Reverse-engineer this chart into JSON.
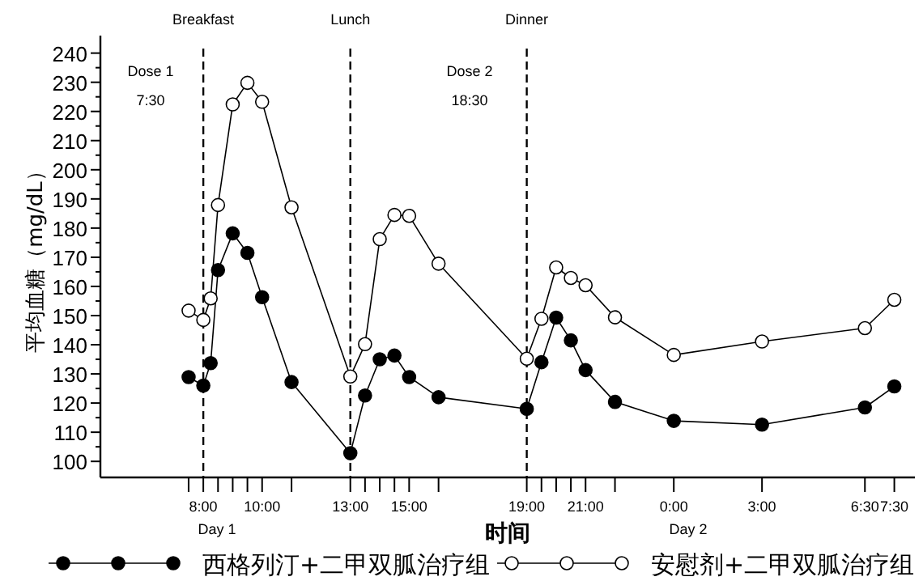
{
  "chart_data": {
    "type": "line",
    "xlabel": "时间",
    "ylabel": "平均血糖（mg/dL）",
    "xlim": [
      "--01-01T04:30",
      "--01-02T08:12"
    ],
    "ylim": [
      94.5,
      246
    ],
    "xticks": [
      {
        "value": "--01-01T07:30",
        "label": null
      },
      {
        "value": "--01-01T08:00",
        "label": "8:00"
      },
      {
        "value": "--01-01T08:30",
        "label": null
      },
      {
        "value": "--01-01T09:00",
        "label": null
      },
      {
        "value": "--01-01T09:30",
        "label": null
      },
      {
        "value": "--01-01T10:00",
        "label": "10:00"
      },
      {
        "value": "--01-01T11:00",
        "label": null
      },
      {
        "value": "--01-01T13:00",
        "label": "13:00"
      },
      {
        "value": "--01-01T13:30",
        "label": null
      },
      {
        "value": "--01-01T14:00",
        "label": null
      },
      {
        "value": "--01-01T14:30",
        "label": null
      },
      {
        "value": "--01-01T15:00",
        "label": "15:00"
      },
      {
        "value": "--01-01T16:00",
        "label": null
      },
      {
        "value": "--01-01T19:00",
        "label": "19:00"
      },
      {
        "value": "--01-01T19:30",
        "label": null
      },
      {
        "value": "--01-01T20:00",
        "label": null
      },
      {
        "value": "--01-01T20:30",
        "label": null
      },
      {
        "value": "--01-01T21:00",
        "label": "21:00"
      },
      {
        "value": "--01-01T22:00",
        "label": null
      },
      {
        "value": "--01-02T00:00",
        "label": "0:00"
      },
      {
        "value": "--01-02T03:00",
        "label": "3:00"
      },
      {
        "value": "--01-02T06:30",
        "label": "6:30"
      },
      {
        "value": "--01-02T07:30",
        "label": "7:30"
      }
    ],
    "yticks": [
      100,
      110,
      120,
      130,
      140,
      150,
      160,
      170,
      180,
      190,
      200,
      210,
      220,
      230,
      240
    ],
    "grid": false,
    "legend": "bottom",
    "marker": "circle",
    "line_style": "solid",
    "x": [
      "--01-01T07:30",
      "--01-01T08:00",
      "--01-01T08:15",
      "--01-01T08:30",
      "--01-01T09:00",
      "--01-01T09:30",
      "--01-01T10:00",
      "--01-01T11:00",
      "--01-01T13:00",
      "--01-01T13:30",
      "--01-01T14:00",
      "--01-01T14:30",
      "--01-01T15:00",
      "--01-01T16:00",
      "--01-01T19:00",
      "--01-01T19:30",
      "--01-01T20:00",
      "--01-01T20:30",
      "--01-01T21:00",
      "--01-01T22:00",
      "--01-02T00:00",
      "--01-02T03:00",
      "--01-02T06:30",
      "--01-02T07:30"
    ],
    "series": [
      {
        "name": "西格列汀+二甲双胍治疗组",
        "color": "#000000",
        "values": [
          128.9,
          126,
          133.7,
          165.6,
          178.2,
          171.5,
          156.3,
          127.2,
          102.8,
          122.6,
          135,
          136.3,
          128.9,
          122,
          118,
          134,
          149.3,
          141.5,
          131.3,
          120.4,
          113.9,
          112.6,
          118.5,
          125.7
        ]
      },
      {
        "name": "安慰剂+二甲双胍治疗组",
        "color": "#000000",
        "values": [
          151.7,
          148.5,
          155.9,
          187.9,
          222.4,
          229.8,
          223.3,
          187.1,
          129.1,
          140.2,
          176.2,
          184.5,
          184.2,
          167.8,
          135.2,
          148.9,
          166.5,
          162.9,
          160.4,
          149.4,
          136.5,
          141.1,
          145.7,
          155.4
        ]
      }
    ],
    "ref_lines": [
      {
        "axis": "x",
        "value": "--01-01T08:00",
        "label": "Breakfast",
        "line_style": "dashed"
      },
      {
        "axis": "x",
        "value": "--01-01T13:00",
        "label": "Lunch",
        "line_style": "dashed"
      },
      {
        "axis": "x",
        "value": "--01-01T19:00",
        "label": "Dinner",
        "line_style": "dashed"
      }
    ],
    "annotations": [
      "Dose 1",
      "7:30",
      "Dose 2",
      "18:30",
      "Day 1",
      "Day 2"
    ]
  }
}
